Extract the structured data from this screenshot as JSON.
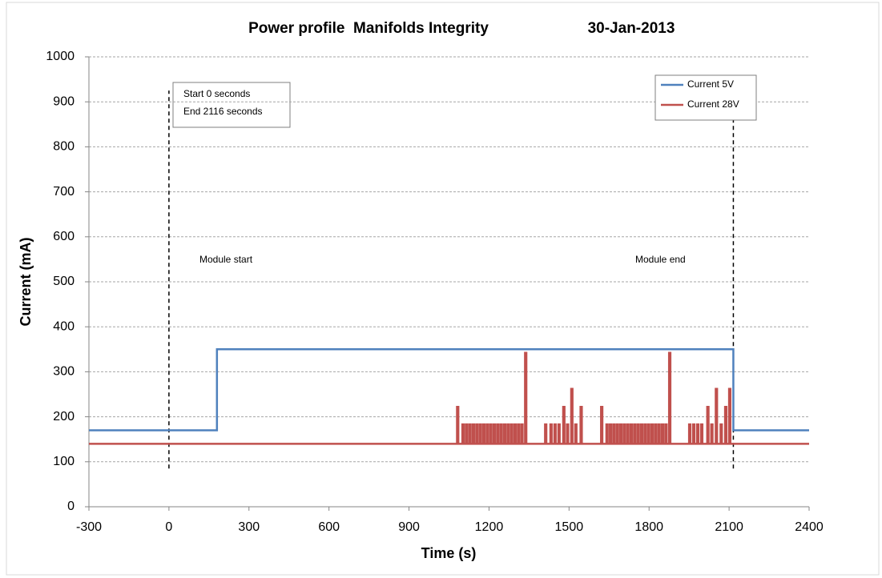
{
  "chart_data": {
    "type": "line",
    "title": "Power profile  Manifolds Integrity",
    "date": "30-Jan-2013",
    "x_label": "Time (s)",
    "y_label": "Current (mA)",
    "xlim": [
      -300,
      2400
    ],
    "ylim": [
      0,
      1000
    ],
    "xticks": [
      -300,
      0,
      300,
      600,
      900,
      1200,
      1500,
      1800,
      2100,
      2400
    ],
    "yticks": [
      0,
      100,
      200,
      300,
      400,
      500,
      600,
      700,
      800,
      900,
      1000
    ],
    "grid": true,
    "legend": "upper right",
    "annotations": [
      "Start 0 seconds",
      "End 2116 seconds",
      "Module start",
      "Module end"
    ],
    "markers": [
      {
        "x": 0,
        "y": [
          85,
          925
        ]
      },
      {
        "x": 2116,
        "y": [
          85,
          865
        ]
      }
    ],
    "series": [
      {
        "name": "Current 5V",
        "color": "#4f81bd",
        "x": [
          -300,
          180,
          180,
          2116,
          2116,
          2400
        ],
        "values": [
          170,
          170,
          350,
          350,
          170,
          170
        ]
      },
      {
        "name": "Current 28V",
        "color": "#c0504d",
        "x": [
          -300,
          1080,
          1080,
          1085,
          1085,
          1100,
          1100,
          1105,
          1105,
          1113,
          1113,
          1118,
          1118,
          1126,
          1126,
          1131,
          1131,
          1139,
          1139,
          1144,
          1144,
          1152,
          1152,
          1157,
          1157,
          1165,
          1165,
          1170,
          1170,
          1178,
          1178,
          1183,
          1183,
          1191,
          1191,
          1196,
          1196,
          1204,
          1204,
          1209,
          1209,
          1217,
          1217,
          1222,
          1222,
          1230,
          1230,
          1235,
          1235,
          1243,
          1243,
          1248,
          1248,
          1256,
          1256,
          1261,
          1261,
          1269,
          1269,
          1274,
          1274,
          1282,
          1282,
          1287,
          1287,
          1295,
          1295,
          1300,
          1300,
          1308,
          1308,
          1313,
          1313,
          1321,
          1321,
          1326,
          1326,
          1335,
          1335,
          1340,
          1340,
          1410,
          1410,
          1415,
          1415,
          1430,
          1430,
          1435,
          1435,
          1445,
          1445,
          1450,
          1450,
          1460,
          1460,
          1465,
          1465,
          1478,
          1478,
          1483,
          1483,
          1492,
          1492,
          1497,
          1497,
          1508,
          1508,
          1513,
          1513,
          1523,
          1523,
          1528,
          1528,
          1543,
          1543,
          1548,
          1548,
          1620,
          1620,
          1625,
          1625,
          1640,
          1640,
          1645,
          1645,
          1653,
          1653,
          1658,
          1658,
          1666,
          1666,
          1671,
          1671,
          1679,
          1679,
          1684,
          1684,
          1692,
          1692,
          1697,
          1697,
          1705,
          1705,
          1710,
          1710,
          1718,
          1718,
          1723,
          1723,
          1731,
          1731,
          1736,
          1736,
          1744,
          1744,
          1749,
          1749,
          1757,
          1757,
          1762,
          1762,
          1770,
          1770,
          1775,
          1775,
          1783,
          1783,
          1788,
          1788,
          1796,
          1796,
          1801,
          1801,
          1809,
          1809,
          1814,
          1814,
          1822,
          1822,
          1827,
          1827,
          1835,
          1835,
          1840,
          1840,
          1848,
          1848,
          1853,
          1853,
          1861,
          1861,
          1866,
          1866,
          1875,
          1875,
          1880,
          1880,
          1950,
          1950,
          1955,
          1955,
          1965,
          1965,
          1970,
          1970,
          1980,
          1980,
          1985,
          1985,
          1995,
          1995,
          2000,
          2000,
          2018,
          2018,
          2023,
          2023,
          2033,
          2033,
          2038,
          2038,
          2050,
          2050,
          2055,
          2055,
          2068,
          2068,
          2073,
          2073,
          2085,
          2085,
          2090,
          2090,
          2100,
          2100,
          2105,
          2105,
          2400
        ],
        "values": [
          140,
          140,
          222,
          222,
          140,
          140,
          183,
          183,
          140,
          140,
          183,
          183,
          140,
          140,
          183,
          183,
          140,
          140,
          183,
          183,
          140,
          140,
          183,
          183,
          140,
          140,
          183,
          183,
          140,
          140,
          183,
          183,
          140,
          140,
          183,
          183,
          140,
          140,
          183,
          183,
          140,
          140,
          183,
          183,
          140,
          140,
          183,
          183,
          140,
          140,
          183,
          183,
          140,
          140,
          183,
          183,
          140,
          140,
          183,
          183,
          140,
          140,
          183,
          183,
          140,
          140,
          183,
          183,
          140,
          140,
          183,
          183,
          140,
          140,
          183,
          183,
          140,
          140,
          342,
          342,
          140,
          140,
          183,
          183,
          140,
          140,
          183,
          183,
          140,
          140,
          183,
          183,
          140,
          140,
          183,
          183,
          140,
          140,
          222,
          222,
          140,
          140,
          183,
          183,
          140,
          140,
          262,
          262,
          140,
          140,
          183,
          183,
          140,
          140,
          222,
          222,
          140,
          140,
          222,
          222,
          140,
          140,
          183,
          183,
          140,
          140,
          183,
          183,
          140,
          140,
          183,
          183,
          140,
          140,
          183,
          183,
          140,
          140,
          183,
          183,
          140,
          140,
          183,
          183,
          140,
          140,
          183,
          183,
          140,
          140,
          183,
          183,
          140,
          140,
          183,
          183,
          140,
          140,
          183,
          183,
          140,
          140,
          183,
          183,
          140,
          140,
          183,
          183,
          140,
          140,
          183,
          183,
          140,
          140,
          183,
          183,
          140,
          140,
          183,
          183,
          140,
          140,
          183,
          183,
          140,
          140,
          183,
          183,
          140,
          140,
          183,
          183,
          140,
          140,
          342,
          342,
          140,
          140,
          183,
          183,
          140,
          140,
          183,
          183,
          140,
          140,
          183,
          183,
          140,
          140,
          183,
          183,
          140,
          140,
          222,
          222,
          140,
          140,
          183,
          183,
          140,
          140,
          262,
          262,
          140,
          140,
          183,
          183,
          140,
          140,
          222,
          222,
          140,
          140,
          262,
          262,
          140,
          140
        ]
      }
    ]
  }
}
